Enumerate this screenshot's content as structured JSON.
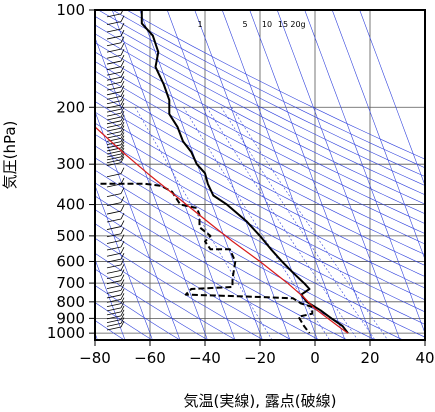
{
  "chart_data": {
    "type": "line",
    "title": "",
    "xlabel": "気温(実線), 露点(破線)",
    "ylabel": "気圧(hPa)",
    "x_ticks": [
      -80,
      -60,
      -40,
      -20,
      0,
      20,
      40
    ],
    "x_tick_labels": [
      "−80",
      "−60",
      "−40",
      "−20",
      "0",
      "20",
      "40"
    ],
    "y_ticks": [
      100,
      200,
      300,
      400,
      500,
      600,
      700,
      800,
      900,
      1000
    ],
    "y_tick_labels": [
      "100",
      "200",
      "300",
      "400",
      "500",
      "600",
      "700",
      "800",
      "900",
      "1000"
    ],
    "xlim": [
      -80,
      40
    ],
    "ylim": [
      1050,
      100
    ],
    "y_scale": "log",
    "grid": true,
    "mixing_ratio_labels": [
      "1",
      "5",
      "10",
      "15",
      "20g"
    ],
    "mixing_ratio_values": [
      1,
      5,
      10,
      15,
      20
    ],
    "series": [
      {
        "style": "solid",
        "color": "#000000",
        "points": [
          [
            -63,
            100
          ],
          [
            -63,
            110
          ],
          [
            -59,
            120
          ],
          [
            -57,
            135
          ],
          [
            -58,
            150
          ],
          [
            -55,
            170
          ],
          [
            -53,
            190
          ],
          [
            -53,
            210
          ],
          [
            -50,
            230
          ],
          [
            -48,
            255
          ],
          [
            -45,
            275
          ],
          [
            -43,
            300
          ],
          [
            -40,
            320
          ],
          [
            -39,
            345
          ],
          [
            -37,
            375
          ],
          [
            -32,
            400
          ],
          [
            -25,
            450
          ],
          [
            -20,
            500
          ],
          [
            -16,
            550
          ],
          [
            -12,
            600
          ],
          [
            -8,
            650
          ],
          [
            -4,
            700
          ],
          [
            -2,
            730
          ],
          [
            -5,
            760
          ],
          [
            -3,
            800
          ],
          [
            2,
            850
          ],
          [
            6,
            900
          ],
          [
            10,
            950
          ],
          [
            12,
            1000
          ]
        ]
      },
      {
        "style": "dashed",
        "color": "#000000",
        "points": [
          [
            -78,
            345
          ],
          [
            -62,
            345
          ],
          [
            -56,
            350
          ],
          [
            -52,
            365
          ],
          [
            -49,
            400
          ],
          [
            -43,
            410
          ],
          [
            -42,
            430
          ],
          [
            -42,
            470
          ],
          [
            -38,
            500
          ],
          [
            -40,
            520
          ],
          [
            -38,
            550
          ],
          [
            -31,
            550
          ],
          [
            -29,
            600
          ],
          [
            -30,
            680
          ],
          [
            -30,
            720
          ],
          [
            -45,
            730
          ],
          [
            -47,
            760
          ],
          [
            -25,
            770
          ],
          [
            -8,
            780
          ],
          [
            -5,
            810
          ],
          [
            -1,
            830
          ],
          [
            -1,
            870
          ],
          [
            -6,
            890
          ],
          [
            -5,
            920
          ],
          [
            -4,
            950
          ],
          [
            -2,
            1000
          ]
        ]
      },
      {
        "style": "solid",
        "color": "#d81b1b",
        "points": [
          [
            -80,
            230
          ],
          [
            -70,
            275
          ],
          [
            -60,
            325
          ],
          [
            -50,
            380
          ],
          [
            -40,
            445
          ],
          [
            -30,
            520
          ],
          [
            -20,
            600
          ],
          [
            -10,
            700
          ],
          [
            -4,
            775
          ],
          [
            0,
            840
          ],
          [
            5,
            905
          ],
          [
            9,
            960
          ],
          [
            12,
            1000
          ]
        ]
      }
    ],
    "isotherms_skewed": true,
    "dry_adiabats": true,
    "mixing_ratio_lines": true,
    "wind_barbs_column": true
  }
}
